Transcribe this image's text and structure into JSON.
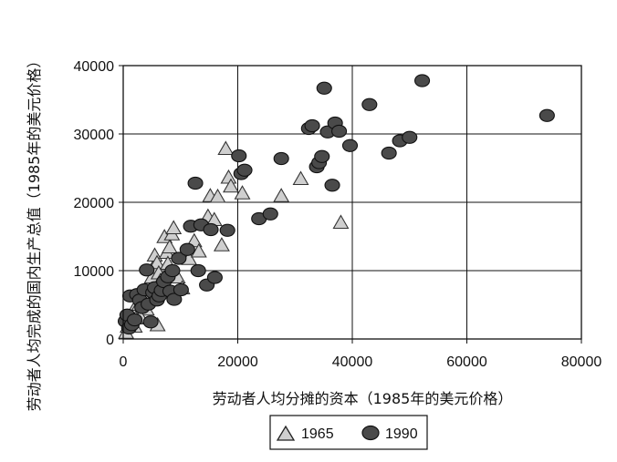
{
  "chart_data": {
    "type": "scatter",
    "xlabel": "劳动者人均分摊的资本（1985年的美元价格）",
    "ylabel": "劳动者人均完成的国内生产总值（1985年的美元价格）",
    "xlim": [
      0,
      80000
    ],
    "ylim": [
      0,
      40000
    ],
    "x_ticks": [
      "0",
      "20000",
      "40000",
      "60000",
      "80000"
    ],
    "y_ticks": [
      "0",
      "10000",
      "20000",
      "30000",
      "40000"
    ],
    "x_tick_values": [
      0,
      20000,
      40000,
      60000,
      80000
    ],
    "y_tick_values": [
      0,
      10000,
      20000,
      30000,
      40000
    ],
    "grid": true,
    "legend_position": "bottom-center",
    "series": [
      {
        "name": "1965",
        "marker": "triangle",
        "color": "#cfcfcf",
        "points": [
          [
            500,
            900
          ],
          [
            800,
            1800
          ],
          [
            1200,
            2600
          ],
          [
            1500,
            3500
          ],
          [
            1800,
            4200
          ],
          [
            2200,
            3000
          ],
          [
            2800,
            5000
          ],
          [
            3200,
            6000
          ],
          [
            3700,
            5500
          ],
          [
            4100,
            4300
          ],
          [
            4500,
            7800
          ],
          [
            5000,
            9000
          ],
          [
            5200,
            10400
          ],
          [
            5500,
            12200
          ],
          [
            5900,
            11100
          ],
          [
            6200,
            9600
          ],
          [
            6500,
            8500
          ],
          [
            7200,
            14900
          ],
          [
            7600,
            12600
          ],
          [
            7800,
            11000
          ],
          [
            8100,
            13400
          ],
          [
            8500,
            15300
          ],
          [
            8800,
            16200
          ],
          [
            9500,
            9000
          ],
          [
            10300,
            7400
          ],
          [
            11500,
            11700
          ],
          [
            12400,
            14300
          ],
          [
            13200,
            12800
          ],
          [
            14800,
            17900
          ],
          [
            15200,
            20900
          ],
          [
            15900,
            17400
          ],
          [
            16500,
            20800
          ],
          [
            17200,
            13700
          ],
          [
            17900,
            27800
          ],
          [
            18400,
            23600
          ],
          [
            18800,
            22300
          ],
          [
            20800,
            21300
          ],
          [
            27600,
            20900
          ],
          [
            31000,
            23400
          ],
          [
            38000,
            17000
          ],
          [
            2000,
            1800
          ],
          [
            3000,
            3200
          ],
          [
            6000,
            2000
          ],
          [
            4800,
            6600
          ]
        ]
      },
      {
        "name": "1990",
        "marker": "circle",
        "color": "#4a4a4a",
        "points": [
          [
            400,
            2600
          ],
          [
            700,
            3500
          ],
          [
            1000,
            1600
          ],
          [
            1200,
            6300
          ],
          [
            1500,
            2100
          ],
          [
            2000,
            2800
          ],
          [
            2400,
            6500
          ],
          [
            2900,
            5700
          ],
          [
            3300,
            4600
          ],
          [
            3700,
            7200
          ],
          [
            4100,
            10100
          ],
          [
            4400,
            5100
          ],
          [
            4800,
            2500
          ],
          [
            5200,
            6800
          ],
          [
            5500,
            7500
          ],
          [
            5900,
            5700
          ],
          [
            6300,
            6300
          ],
          [
            6700,
            7100
          ],
          [
            7100,
            8400
          ],
          [
            7800,
            9100
          ],
          [
            8200,
            7000
          ],
          [
            8600,
            10000
          ],
          [
            8900,
            5800
          ],
          [
            9700,
            11800
          ],
          [
            10100,
            7200
          ],
          [
            11200,
            13100
          ],
          [
            11800,
            16500
          ],
          [
            12600,
            22800
          ],
          [
            13100,
            10000
          ],
          [
            13600,
            16700
          ],
          [
            14600,
            7900
          ],
          [
            15300,
            16000
          ],
          [
            16000,
            9000
          ],
          [
            18200,
            15900
          ],
          [
            20200,
            26800
          ],
          [
            20600,
            24200
          ],
          [
            21200,
            24700
          ],
          [
            23700,
            17600
          ],
          [
            25700,
            18300
          ],
          [
            27600,
            26400
          ],
          [
            32400,
            30800
          ],
          [
            33000,
            31200
          ],
          [
            33800,
            25200
          ],
          [
            34200,
            25800
          ],
          [
            34700,
            26700
          ],
          [
            35100,
            36700
          ],
          [
            35700,
            30300
          ],
          [
            36500,
            22500
          ],
          [
            37000,
            31600
          ],
          [
            37700,
            30400
          ],
          [
            39600,
            28300
          ],
          [
            43000,
            34300
          ],
          [
            46400,
            27200
          ],
          [
            48300,
            29000
          ],
          [
            50000,
            29500
          ],
          [
            52200,
            37800
          ],
          [
            74000,
            32700
          ]
        ]
      }
    ]
  }
}
